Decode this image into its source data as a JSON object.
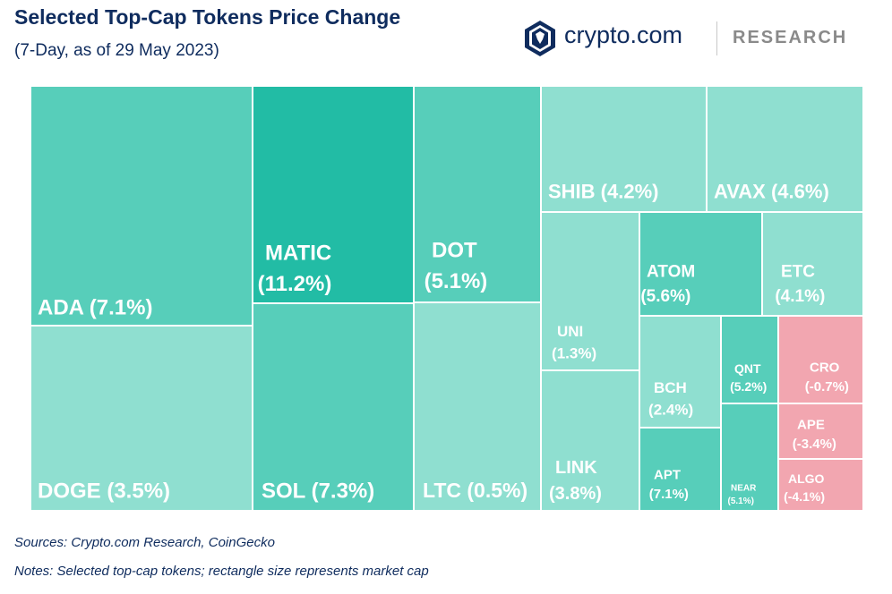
{
  "header": {
    "title": "Selected Top-Cap Tokens Price Change",
    "subtitle": "(7-Day, as of 29 May 2023)"
  },
  "brand": {
    "name": "crypto.com",
    "section": "RESEARCH",
    "logo_icon": "crypto-com-lion-shield-icon"
  },
  "colors": {
    "high_gain": "#22bca5",
    "mid_gain": "#57ceba",
    "low_gain": "#8fdfd0",
    "loss": "#f2a6b0",
    "title_text": "#0f2c5e",
    "label_text": "#ffffff"
  },
  "chart_data": {
    "type": "treemap",
    "title": "Selected Top-Cap Tokens Price Change",
    "subtitle": "(7-Day, as of 29 May 2023)",
    "value_unit": "%",
    "size_metric": "market cap",
    "items": [
      {
        "token": "ADA",
        "change": 7.1,
        "label": "ADA (7.1%)"
      },
      {
        "token": "DOGE",
        "change": 3.5,
        "label": "DOGE (3.5%)"
      },
      {
        "token": "MATIC",
        "change": 11.2,
        "label": "MATIC (11.2%)"
      },
      {
        "token": "SOL",
        "change": 7.3,
        "label": "SOL (7.3%)"
      },
      {
        "token": "DOT",
        "change": 5.1,
        "label": "DOT (5.1%)"
      },
      {
        "token": "LTC",
        "change": 0.5,
        "label": "LTC (0.5%)"
      },
      {
        "token": "SHIB",
        "change": 4.2,
        "label": "SHIB (4.2%)"
      },
      {
        "token": "AVAX",
        "change": 4.6,
        "label": "AVAX (4.6%)"
      },
      {
        "token": "UNI",
        "change": 1.3,
        "label": "UNI (1.3%)"
      },
      {
        "token": "LINK",
        "change": 3.8,
        "label": "LINK (3.8%)"
      },
      {
        "token": "ATOM",
        "change": 5.6,
        "label": "ATOM (5.6%)"
      },
      {
        "token": "ETC",
        "change": 4.1,
        "label": "ETC (4.1%)"
      },
      {
        "token": "BCH",
        "change": 2.4,
        "label": "BCH (2.4%)"
      },
      {
        "token": "QNT",
        "change": 5.2,
        "label": "QNT (5.2%)"
      },
      {
        "token": "CRO",
        "change": -0.7,
        "label": "CRO (-0.7%)"
      },
      {
        "token": "APT",
        "change": 7.1,
        "label": "APT (7.1%)"
      },
      {
        "token": "NEAR",
        "change": 5.1,
        "label": "NEAR (5.1%)"
      },
      {
        "token": "APE",
        "change": -3.4,
        "label": "APE (-3.4%)"
      },
      {
        "token": "ALGO",
        "change": -4.1,
        "label": "ALGO (-4.1%)"
      }
    ]
  },
  "footer": {
    "sources": "Sources: Crypto.com Research, CoinGecko",
    "notes": "Notes: Selected top-cap tokens; rectangle size represents market cap"
  }
}
